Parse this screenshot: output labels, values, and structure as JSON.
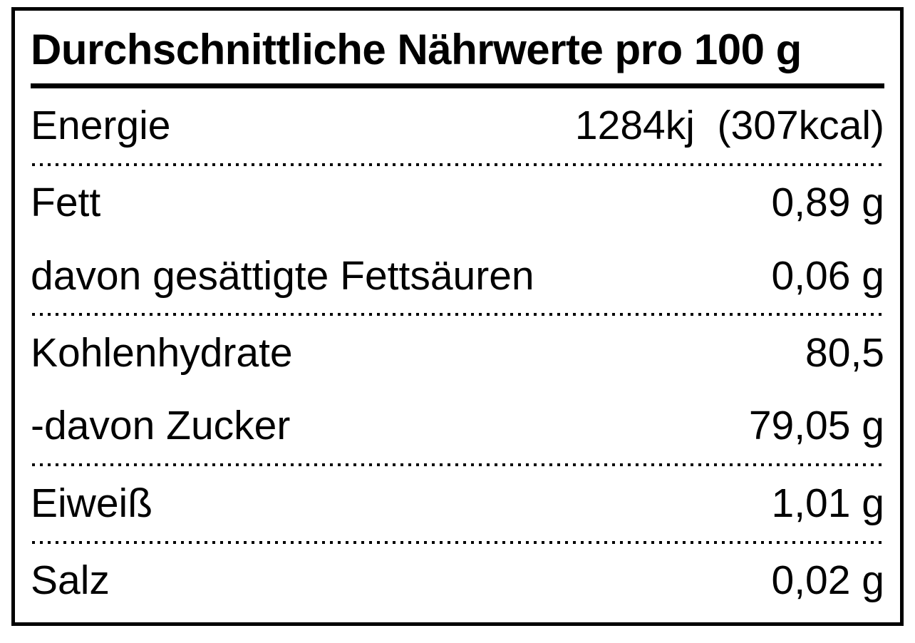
{
  "nutrition_label": {
    "title": "Durchschnittliche Nährwerte pro 100 g",
    "rows": [
      {
        "label": "Energie",
        "value": "1284kj  (307kcal)"
      },
      {
        "label": "Fett",
        "value": "0,89 g"
      },
      {
        "label": "davon gesättigte Fettsäuren",
        "value": "0,06 g"
      },
      {
        "label": "Kohlenhydrate",
        "value": "80,5"
      },
      {
        "label": "-davon Zucker",
        "value": "79,05 g"
      },
      {
        "label": "Eiweiß",
        "value": "1,01 g"
      },
      {
        "label": "Salz",
        "value": "0,02 g"
      }
    ],
    "colors": {
      "foreground": "#000000",
      "background": "#ffffff"
    }
  }
}
